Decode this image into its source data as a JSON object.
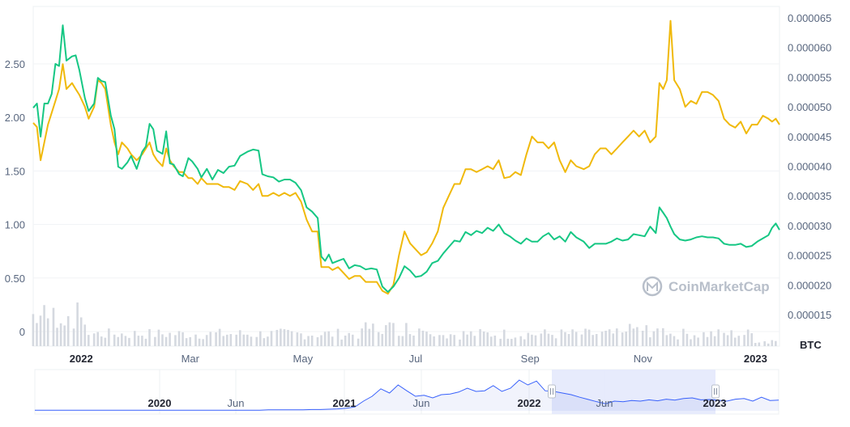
{
  "chart_data": {
    "type": "line",
    "series": [
      {
        "name": "",
        "color": "#16c784",
        "axis": "left"
      },
      {
        "name": "",
        "color": "#f0b90b",
        "axis": "right"
      }
    ],
    "left_axis": {
      "ticks": [
        "0",
        "0.50",
        "1.00",
        "1.50",
        "2.00",
        "2.50"
      ],
      "ylim": [
        -0.005,
        2.88
      ]
    },
    "right_axis": {
      "label": "BTC",
      "ticks": [
        "0.000015",
        "0.000020",
        "0.000025",
        "0.000030",
        "0.000035",
        "0.000040",
        "0.000045",
        "0.000050",
        "0.000055",
        "0.000060",
        "0.000065"
      ],
      "ylim": [
        1.25e-05,
        6.55e-05
      ]
    },
    "x_ticks": [
      {
        "label": "2022",
        "bold": true
      },
      {
        "label": "Mar",
        "bold": false
      },
      {
        "label": "May",
        "bold": false
      },
      {
        "label": "Jul",
        "bold": false
      },
      {
        "label": "Sep",
        "bold": false
      },
      {
        "label": "Nov",
        "bold": false
      },
      {
        "label": "2023",
        "bold": true
      }
    ],
    "x_range": [
      "2021-12-06",
      "2023-01-14"
    ],
    "green_points": [
      [
        "2021-12-06",
        2.09
      ],
      [
        "2021-12-08",
        2.13
      ],
      [
        "2021-12-10",
        1.82
      ],
      [
        "2021-12-12",
        2.13
      ],
      [
        "2021-12-14",
        2.13
      ],
      [
        "2021-12-16",
        2.22
      ],
      [
        "2021-12-18",
        2.5
      ],
      [
        "2021-12-20",
        2.48
      ],
      [
        "2021-12-22",
        2.86
      ],
      [
        "2021-12-24",
        2.53
      ],
      [
        "2021-12-27",
        2.57
      ],
      [
        "2021-12-29",
        2.58
      ],
      [
        "2021-12-31",
        2.44
      ],
      [
        "2022-01-03",
        2.18
      ],
      [
        "2022-01-05",
        2.06
      ],
      [
        "2022-01-08",
        2.13
      ],
      [
        "2022-01-10",
        2.37
      ],
      [
        "2022-01-12",
        2.34
      ],
      [
        "2022-01-14",
        2.33
      ],
      [
        "2022-01-17",
        2.02
      ],
      [
        "2022-01-19",
        1.89
      ],
      [
        "2022-01-21",
        1.54
      ],
      [
        "2022-01-23",
        1.52
      ],
      [
        "2022-01-26",
        1.58
      ],
      [
        "2022-01-28",
        1.64
      ],
      [
        "2022-01-31",
        1.52
      ],
      [
        "2022-02-03",
        1.68
      ],
      [
        "2022-02-05",
        1.73
      ],
      [
        "2022-02-07",
        1.94
      ],
      [
        "2022-02-09",
        1.89
      ],
      [
        "2022-02-11",
        1.69
      ],
      [
        "2022-02-14",
        1.66
      ],
      [
        "2022-02-16",
        1.87
      ],
      [
        "2022-02-18",
        1.57
      ],
      [
        "2022-02-20",
        1.56
      ],
      [
        "2022-02-23",
        1.47
      ],
      [
        "2022-02-25",
        1.45
      ],
      [
        "2022-02-28",
        1.62
      ],
      [
        "2022-03-02",
        1.59
      ],
      [
        "2022-03-05",
        1.52
      ],
      [
        "2022-03-07",
        1.44
      ],
      [
        "2022-03-10",
        1.52
      ],
      [
        "2022-03-13",
        1.42
      ],
      [
        "2022-03-16",
        1.51
      ],
      [
        "2022-03-19",
        1.48
      ],
      [
        "2022-03-22",
        1.54
      ],
      [
        "2022-03-25",
        1.55
      ],
      [
        "2022-03-28",
        1.64
      ],
      [
        "2022-04-01",
        1.68
      ],
      [
        "2022-04-04",
        1.7
      ],
      [
        "2022-04-07",
        1.69
      ],
      [
        "2022-04-09",
        1.47
      ],
      [
        "2022-04-12",
        1.45
      ],
      [
        "2022-04-15",
        1.44
      ],
      [
        "2022-04-18",
        1.4
      ],
      [
        "2022-04-21",
        1.42
      ],
      [
        "2022-04-24",
        1.42
      ],
      [
        "2022-04-27",
        1.39
      ],
      [
        "2022-04-30",
        1.32
      ],
      [
        "2022-05-03",
        1.16
      ],
      [
        "2022-05-06",
        1.12
      ],
      [
        "2022-05-09",
        1.06
      ],
      [
        "2022-05-11",
        0.7
      ],
      [
        "2022-05-13",
        0.66
      ],
      [
        "2022-05-15",
        0.72
      ],
      [
        "2022-05-17",
        0.64
      ],
      [
        "2022-05-20",
        0.66
      ],
      [
        "2022-05-23",
        0.68
      ],
      [
        "2022-05-26",
        0.59
      ],
      [
        "2022-05-29",
        0.62
      ],
      [
        "2022-06-01",
        0.61
      ],
      [
        "2022-06-04",
        0.58
      ],
      [
        "2022-06-07",
        0.59
      ],
      [
        "2022-06-10",
        0.58
      ],
      [
        "2022-06-13",
        0.42
      ],
      [
        "2022-06-16",
        0.37
      ],
      [
        "2022-06-19",
        0.42
      ],
      [
        "2022-06-22",
        0.5
      ],
      [
        "2022-06-25",
        0.61
      ],
      [
        "2022-06-28",
        0.57
      ],
      [
        "2022-07-01",
        0.51
      ],
      [
        "2022-07-04",
        0.52
      ],
      [
        "2022-07-07",
        0.56
      ],
      [
        "2022-07-10",
        0.64
      ],
      [
        "2022-07-13",
        0.66
      ],
      [
        "2022-07-16",
        0.73
      ],
      [
        "2022-07-19",
        0.79
      ],
      [
        "2022-07-22",
        0.85
      ],
      [
        "2022-07-25",
        0.84
      ],
      [
        "2022-07-28",
        0.93
      ],
      [
        "2022-07-31",
        0.9
      ],
      [
        "2022-08-03",
        0.94
      ],
      [
        "2022-08-06",
        0.92
      ],
      [
        "2022-08-09",
        0.97
      ],
      [
        "2022-08-12",
        0.94
      ],
      [
        "2022-08-15",
        1.0
      ],
      [
        "2022-08-18",
        0.92
      ],
      [
        "2022-08-21",
        0.89
      ],
      [
        "2022-08-24",
        0.85
      ],
      [
        "2022-08-27",
        0.82
      ],
      [
        "2022-08-30",
        0.87
      ],
      [
        "2022-09-02",
        0.84
      ],
      [
        "2022-09-05",
        0.84
      ],
      [
        "2022-09-08",
        0.89
      ],
      [
        "2022-09-11",
        0.92
      ],
      [
        "2022-09-14",
        0.86
      ],
      [
        "2022-09-17",
        0.89
      ],
      [
        "2022-09-20",
        0.84
      ],
      [
        "2022-09-23",
        0.93
      ],
      [
        "2022-09-26",
        0.88
      ],
      [
        "2022-09-30",
        0.84
      ],
      [
        "2022-10-03",
        0.78
      ],
      [
        "2022-10-06",
        0.82
      ],
      [
        "2022-10-09",
        0.82
      ],
      [
        "2022-10-12",
        0.82
      ],
      [
        "2022-10-15",
        0.84
      ],
      [
        "2022-10-18",
        0.87
      ],
      [
        "2022-10-21",
        0.85
      ],
      [
        "2022-10-24",
        0.86
      ],
      [
        "2022-10-27",
        0.91
      ],
      [
        "2022-10-30",
        0.9
      ],
      [
        "2022-11-02",
        0.89
      ],
      [
        "2022-11-05",
        0.98
      ],
      [
        "2022-11-08",
        0.92
      ],
      [
        "2022-11-10",
        1.16
      ],
      [
        "2022-11-12",
        1.11
      ],
      [
        "2022-11-14",
        1.06
      ],
      [
        "2022-11-16",
        0.98
      ],
      [
        "2022-11-18",
        0.91
      ],
      [
        "2022-11-21",
        0.86
      ],
      [
        "2022-11-24",
        0.85
      ],
      [
        "2022-11-27",
        0.86
      ],
      [
        "2022-11-30",
        0.88
      ],
      [
        "2022-12-03",
        0.89
      ],
      [
        "2022-12-06",
        0.88
      ],
      [
        "2022-12-09",
        0.88
      ],
      [
        "2022-12-12",
        0.87
      ],
      [
        "2022-12-15",
        0.82
      ],
      [
        "2022-12-18",
        0.81
      ],
      [
        "2022-12-21",
        0.81
      ],
      [
        "2022-12-24",
        0.82
      ],
      [
        "2022-12-27",
        0.79
      ],
      [
        "2022-12-30",
        0.8
      ],
      [
        "2023-01-02",
        0.84
      ],
      [
        "2023-01-05",
        0.87
      ],
      [
        "2023-01-08",
        0.9
      ],
      [
        "2023-01-10",
        0.97
      ],
      [
        "2023-01-12",
        1.01
      ],
      [
        "2023-01-14",
        0.95
      ]
    ],
    "yellow_points": [
      [
        "2021-12-06",
        4.73e-05
      ],
      [
        "2021-12-08",
        4.66e-05
      ],
      [
        "2021-12-10",
        4.1e-05
      ],
      [
        "2021-12-12",
        4.4e-05
      ],
      [
        "2021-12-14",
        4.7e-05
      ],
      [
        "2021-12-16",
        4.9e-05
      ],
      [
        "2021-12-18",
        5.1e-05
      ],
      [
        "2021-12-20",
        5.3e-05
      ],
      [
        "2021-12-22",
        5.72e-05
      ],
      [
        "2021-12-24",
        5.3e-05
      ],
      [
        "2021-12-27",
        5.4e-05
      ],
      [
        "2021-12-29",
        5.3e-05
      ],
      [
        "2021-12-31",
        5.2e-05
      ],
      [
        "2022-01-03",
        5e-05
      ],
      [
        "2022-01-05",
        4.8e-05
      ],
      [
        "2022-01-08",
        5e-05
      ],
      [
        "2022-01-10",
        5.45e-05
      ],
      [
        "2022-01-12",
        5.4e-05
      ],
      [
        "2022-01-14",
        5.3e-05
      ],
      [
        "2022-01-17",
        4.7e-05
      ],
      [
        "2022-01-19",
        4.4e-05
      ],
      [
        "2022-01-21",
        4.2e-05
      ],
      [
        "2022-01-23",
        4.4e-05
      ],
      [
        "2022-01-26",
        4.3e-05
      ],
      [
        "2022-01-28",
        4.2e-05
      ],
      [
        "2022-01-31",
        4.1e-05
      ],
      [
        "2022-02-03",
        4.2e-05
      ],
      [
        "2022-02-05",
        4.3e-05
      ],
      [
        "2022-02-07",
        4.4e-05
      ],
      [
        "2022-02-09",
        4.2e-05
      ],
      [
        "2022-02-11",
        4.1e-05
      ],
      [
        "2022-02-14",
        4e-05
      ],
      [
        "2022-02-16",
        4.3e-05
      ],
      [
        "2022-02-18",
        4.1e-05
      ],
      [
        "2022-02-20",
        4e-05
      ],
      [
        "2022-02-23",
        3.9e-05
      ],
      [
        "2022-02-25",
        3.9e-05
      ],
      [
        "2022-02-28",
        3.8e-05
      ],
      [
        "2022-03-02",
        3.8e-05
      ],
      [
        "2022-03-05",
        3.7e-05
      ],
      [
        "2022-03-07",
        3.8e-05
      ],
      [
        "2022-03-10",
        3.7e-05
      ],
      [
        "2022-03-13",
        3.7e-05
      ],
      [
        "2022-03-16",
        3.7e-05
      ],
      [
        "2022-03-19",
        3.65e-05
      ],
      [
        "2022-03-22",
        3.65e-05
      ],
      [
        "2022-03-25",
        3.6e-05
      ],
      [
        "2022-03-28",
        3.75e-05
      ],
      [
        "2022-04-01",
        3.7e-05
      ],
      [
        "2022-04-04",
        3.6e-05
      ],
      [
        "2022-04-07",
        3.7e-05
      ],
      [
        "2022-04-09",
        3.5e-05
      ],
      [
        "2022-04-12",
        3.5e-05
      ],
      [
        "2022-04-15",
        3.55e-05
      ],
      [
        "2022-04-18",
        3.5e-05
      ],
      [
        "2022-04-21",
        3.55e-05
      ],
      [
        "2022-04-24",
        3.5e-05
      ],
      [
        "2022-04-27",
        3.55e-05
      ],
      [
        "2022-04-30",
        3.4e-05
      ],
      [
        "2022-05-03",
        3.1e-05
      ],
      [
        "2022-05-06",
        2.9e-05
      ],
      [
        "2022-05-09",
        2.9e-05
      ],
      [
        "2022-05-11",
        2.3e-05
      ],
      [
        "2022-05-13",
        2.3e-05
      ],
      [
        "2022-05-15",
        2.3e-05
      ],
      [
        "2022-05-17",
        2.25e-05
      ],
      [
        "2022-05-20",
        2.3e-05
      ],
      [
        "2022-05-23",
        2.2e-05
      ],
      [
        "2022-05-26",
        2.1e-05
      ],
      [
        "2022-05-29",
        2.15e-05
      ],
      [
        "2022-06-01",
        2.15e-05
      ],
      [
        "2022-06-04",
        2.05e-05
      ],
      [
        "2022-06-07",
        2.05e-05
      ],
      [
        "2022-06-10",
        2.05e-05
      ],
      [
        "2022-06-13",
        1.9e-05
      ],
      [
        "2022-06-16",
        1.85e-05
      ],
      [
        "2022-06-19",
        2e-05
      ],
      [
        "2022-06-22",
        2.5e-05
      ],
      [
        "2022-06-25",
        2.9e-05
      ],
      [
        "2022-06-28",
        2.7e-05
      ],
      [
        "2022-07-01",
        2.6e-05
      ],
      [
        "2022-07-04",
        2.5e-05
      ],
      [
        "2022-07-07",
        2.55e-05
      ],
      [
        "2022-07-10",
        2.7e-05
      ],
      [
        "2022-07-13",
        2.9e-05
      ],
      [
        "2022-07-16",
        3.3e-05
      ],
      [
        "2022-07-19",
        3.5e-05
      ],
      [
        "2022-07-22",
        3.7e-05
      ],
      [
        "2022-07-25",
        3.7e-05
      ],
      [
        "2022-07-28",
        3.95e-05
      ],
      [
        "2022-07-31",
        3.95e-05
      ],
      [
        "2022-08-03",
        3.9e-05
      ],
      [
        "2022-08-06",
        3.95e-05
      ],
      [
        "2022-08-09",
        4e-05
      ],
      [
        "2022-08-12",
        3.95e-05
      ],
      [
        "2022-08-15",
        4.1e-05
      ],
      [
        "2022-08-18",
        3.8e-05
      ],
      [
        "2022-08-21",
        3.82e-05
      ],
      [
        "2022-08-24",
        3.9e-05
      ],
      [
        "2022-08-27",
        3.85e-05
      ],
      [
        "2022-08-30",
        4.2e-05
      ],
      [
        "2022-09-02",
        4.5e-05
      ],
      [
        "2022-09-05",
        4.4e-05
      ],
      [
        "2022-09-08",
        4.4e-05
      ],
      [
        "2022-09-11",
        4.3e-05
      ],
      [
        "2022-09-14",
        4.4e-05
      ],
      [
        "2022-09-17",
        4.1e-05
      ],
      [
        "2022-09-20",
        3.9e-05
      ],
      [
        "2022-09-23",
        4.1e-05
      ],
      [
        "2022-09-26",
        4e-05
      ],
      [
        "2022-09-30",
        3.95e-05
      ],
      [
        "2022-10-03",
        4e-05
      ],
      [
        "2022-10-06",
        4.2e-05
      ],
      [
        "2022-10-09",
        4.3e-05
      ],
      [
        "2022-10-12",
        4.3e-05
      ],
      [
        "2022-10-15",
        4.2e-05
      ],
      [
        "2022-10-18",
        4.3e-05
      ],
      [
        "2022-10-21",
        4.4e-05
      ],
      [
        "2022-10-24",
        4.5e-05
      ],
      [
        "2022-10-27",
        4.6e-05
      ],
      [
        "2022-10-30",
        4.5e-05
      ],
      [
        "2022-11-02",
        4.6e-05
      ],
      [
        "2022-11-05",
        4.4e-05
      ],
      [
        "2022-11-08",
        4.5e-05
      ],
      [
        "2022-11-10",
        5.4e-05
      ],
      [
        "2022-11-12",
        5.3e-05
      ],
      [
        "2022-11-14",
        5.45e-05
      ],
      [
        "2022-11-16",
        6.45e-05
      ],
      [
        "2022-11-18",
        5.45e-05
      ],
      [
        "2022-11-21",
        5.3e-05
      ],
      [
        "2022-11-24",
        5e-05
      ],
      [
        "2022-11-27",
        5.1e-05
      ],
      [
        "2022-11-30",
        5.05e-05
      ],
      [
        "2022-12-03",
        5.25e-05
      ],
      [
        "2022-12-06",
        5.25e-05
      ],
      [
        "2022-12-09",
        5.2e-05
      ],
      [
        "2022-12-12",
        5.1e-05
      ],
      [
        "2022-12-15",
        4.8e-05
      ],
      [
        "2022-12-18",
        4.7e-05
      ],
      [
        "2022-12-21",
        4.65e-05
      ],
      [
        "2022-12-24",
        4.75e-05
      ],
      [
        "2022-12-27",
        4.55e-05
      ],
      [
        "2022-12-30",
        4.7e-05
      ],
      [
        "2023-01-02",
        4.7e-05
      ],
      [
        "2023-01-05",
        4.85e-05
      ],
      [
        "2023-01-08",
        4.8e-05
      ],
      [
        "2023-01-10",
        4.75e-05
      ],
      [
        "2023-01-12",
        4.8e-05
      ],
      [
        "2023-01-14",
        4.7e-05
      ]
    ],
    "navigator": {
      "labels": [
        {
          "label": "2020",
          "bold": true
        },
        {
          "label": "Jun",
          "bold": false
        },
        {
          "label": "2021",
          "bold": true
        },
        {
          "label": "Jun",
          "bold": false
        },
        {
          "label": "2022",
          "bold": true
        },
        {
          "label": "Jun",
          "bold": false
        },
        {
          "label": "2023",
          "bold": true
        }
      ],
      "series": [
        0.02,
        0.02,
        0.02,
        0.02,
        0.02,
        0.02,
        0.02,
        0.02,
        0.02,
        0.02,
        0.02,
        0.02,
        0.02,
        0.02,
        0.02,
        0.02,
        0.02,
        0.02,
        0.02,
        0.02,
        0.02,
        0.02,
        0.02,
        0.02,
        0.02,
        0.02,
        0.02,
        0.03,
        0.03,
        0.03,
        0.03,
        0.03,
        0.04,
        0.04,
        0.05,
        0.06,
        0.08,
        0.12,
        0.3,
        0.45,
        0.68,
        0.55,
        0.8,
        0.62,
        0.45,
        0.48,
        0.4,
        0.5,
        0.52,
        0.58,
        0.7,
        0.6,
        0.62,
        0.78,
        0.6,
        0.7,
        0.95,
        0.8,
        0.92,
        0.62,
        0.6,
        0.55,
        0.5,
        0.42,
        0.35,
        0.28,
        0.22,
        0.3,
        0.28,
        0.32,
        0.3,
        0.34,
        0.31,
        0.36,
        0.33,
        0.38,
        0.4,
        0.34,
        0.35,
        0.33,
        0.3,
        0.36,
        0.38,
        0.3,
        0.42,
        0.32,
        0.33
      ]
    },
    "grid": true,
    "watermark": "CoinMarketCap"
  }
}
